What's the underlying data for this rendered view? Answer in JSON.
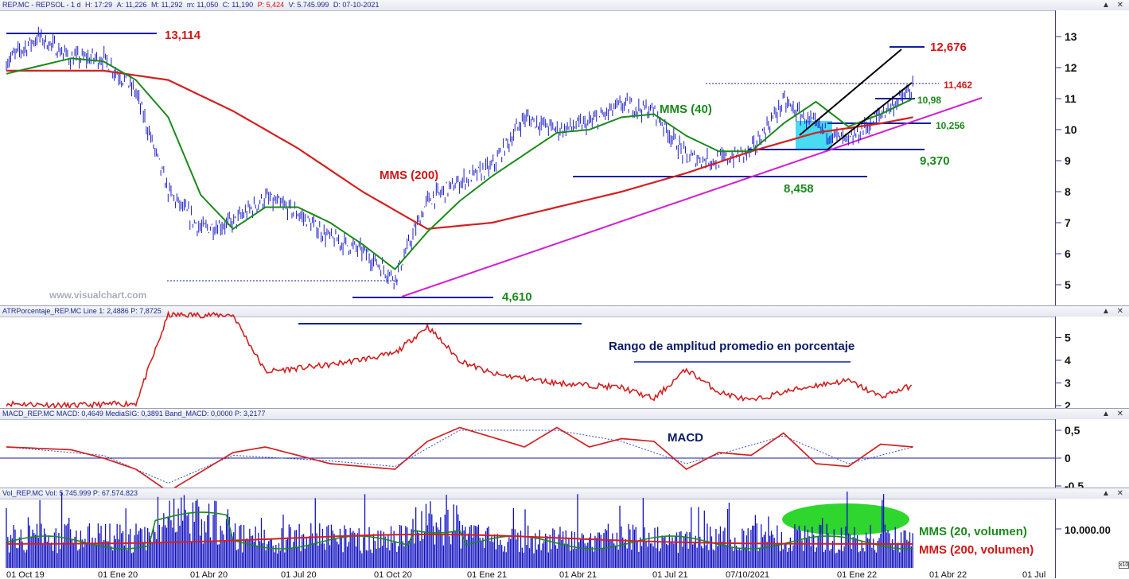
{
  "panels": {
    "price": {
      "header": [
        "REP.MC - REPSOL - 1 d",
        "H: 17:29",
        "A: 11,226",
        "M: 11,292",
        "m: 11,050",
        "C: 11,190"
      ],
      "header_red": "P: 5,424",
      "header_tail": [
        "V: 5.745.999",
        "D: 07-10-2021"
      ],
      "watermark": "www.visualchart.com",
      "yticks": [
        "13",
        "12",
        "11",
        "10",
        "9",
        "8",
        "7",
        "6",
        "5"
      ],
      "annotations": {
        "high_13114": "13,114",
        "high_12676": "12,676",
        "lvl_11462": "11,462",
        "lvl_1098": "10,98",
        "lvl_10256": "10,256",
        "lvl_9370": "9,370",
        "lvl_8458": "8,458",
        "low_4610": "4,610",
        "mms200": "MMS (200)",
        "mms40": "MMS (40)"
      }
    },
    "atr": {
      "header": "ATRPorcentaje_REP.MC Line 1: 2,4886 P: 7,8725",
      "label": "Rango de amplitud promedio en porcentaje",
      "yticks": [
        "5",
        "4",
        "3",
        "2"
      ]
    },
    "macd": {
      "header": "MACD_REP.MC MACD: 0,4649 MediaSIG: 0,3891 Band_MACD: 0,0000 P: 3,2177",
      "label": "MACD",
      "yticks": [
        "0,5",
        "0",
        "-0,5"
      ]
    },
    "volume": {
      "header": "Vol_REP.MC Vol: 5.745.999 P: 67.574.823",
      "ytick": "10.000.00",
      "mms20": "MMS (20, volumen)",
      "mms200": "MMS (200, volumen)",
      "xaxis": [
        "01 Oct 19",
        "01 Ene 20",
        "01 Abr 20",
        "01 Jul 20",
        "01 Oct 20",
        "01 Ene 21",
        "01 Abr 21",
        "01 Jul 21",
        "07/10/2021",
        "01 Ene 22",
        "01 Abr 22",
        "01 Jul"
      ],
      "corner": "x10"
    }
  },
  "colors": {
    "price_bars": "#1c1cc8",
    "sma40": "#1a8a1a",
    "sma200": "#d42020",
    "trendline": "#d020d0",
    "level_lines": "#1020a0",
    "annotation_red": "#d01818",
    "annotation_green": "#1a8a1a",
    "atr_line": "#d02020",
    "macd_line": "#d02020",
    "signal_line": "#3050d0",
    "volume_bars": "#1010c0",
    "highlight_cyan": "#27d6f0",
    "highlight_green": "#2ed62e"
  },
  "chart_data": [
    {
      "type": "line",
      "title": "REP.MC - REPSOL",
      "x_range": [
        "2019-10",
        "2022-01"
      ],
      "ylim": [
        4.5,
        13.5
      ],
      "series": [
        {
          "name": "REP.MC",
          "x": [
            "2019-10",
            "2019-11",
            "2019-12",
            "2020-01",
            "2020-02",
            "2020-03",
            "2020-04",
            "2020-05",
            "2020-06",
            "2020-07",
            "2020-08",
            "2020-09",
            "2020-10",
            "2020-11",
            "2020-12",
            "2021-01",
            "2021-02",
            "2021-03",
            "2021-04",
            "2021-05",
            "2021-06",
            "2021-07",
            "2021-08",
            "2021-09",
            "2021-10",
            "2021-11",
            "2021-12",
            "2022-01",
            "2022-02"
          ],
          "values": [
            12.2,
            13.0,
            12.3,
            12.3,
            11.2,
            8.0,
            6.8,
            7.0,
            7.8,
            7.3,
            6.5,
            6.1,
            5.2,
            7.7,
            8.3,
            8.8,
            10.4,
            10.0,
            10.2,
            10.8,
            10.6,
            9.1,
            9.0,
            9.3,
            10.9,
            10.1,
            9.6,
            10.5,
            11.3
          ]
        },
        {
          "name": "MMS (40)",
          "x": [
            "2019-10",
            "2019-12",
            "2020-01",
            "2020-02",
            "2020-03",
            "2020-04",
            "2020-05",
            "2020-06",
            "2020-07",
            "2020-08",
            "2020-09",
            "2020-10",
            "2020-11",
            "2020-12",
            "2021-01",
            "2021-02",
            "2021-03",
            "2021-04",
            "2021-05",
            "2021-06",
            "2021-07",
            "2021-08",
            "2021-09",
            "2021-10",
            "2021-11",
            "2021-12",
            "2022-01",
            "2022-02"
          ],
          "values": [
            11.8,
            12.3,
            12.2,
            11.6,
            10.4,
            7.9,
            6.8,
            7.5,
            7.5,
            7.0,
            6.3,
            5.5,
            6.7,
            7.7,
            8.5,
            9.2,
            9.9,
            10.0,
            10.4,
            10.5,
            9.8,
            9.3,
            9.3,
            10.2,
            10.9,
            10.1,
            10.5,
            11.0
          ]
        },
        {
          "name": "MMS (200)",
          "x": [
            "2019-10",
            "2020-01",
            "2020-03",
            "2020-05",
            "2020-07",
            "2020-09",
            "2020-11",
            "2021-01",
            "2021-03",
            "2021-05",
            "2021-07",
            "2021-09",
            "2021-11",
            "2022-01",
            "2022-02"
          ],
          "values": [
            11.9,
            11.9,
            11.6,
            10.6,
            9.4,
            8.0,
            6.8,
            7.0,
            7.5,
            8.0,
            8.6,
            9.3,
            9.9,
            10.2,
            10.4
          ]
        }
      ]
    },
    {
      "type": "line",
      "title": "ATRPorcentaje_REP.MC",
      "ylim": [
        2,
        6
      ],
      "series": [
        {
          "name": "Line 1",
          "x": [
            "2019-10",
            "2019-12",
            "2020-02",
            "2020-03",
            "2020-05",
            "2020-06",
            "2020-08",
            "2020-10",
            "2020-11",
            "2020-12",
            "2021-01",
            "2021-03",
            "2021-05",
            "2021-06",
            "2021-07",
            "2021-08",
            "2021-09",
            "2021-10",
            "2021-11",
            "2021-12",
            "2022-01",
            "2022-02"
          ],
          "values": [
            2.1,
            2.0,
            2.1,
            6.0,
            6.0,
            3.5,
            3.8,
            4.3,
            5.5,
            4.0,
            3.4,
            3.0,
            2.8,
            2.3,
            3.6,
            2.6,
            2.2,
            2.6,
            2.9,
            3.1,
            2.4,
            2.9
          ]
        }
      ]
    },
    {
      "type": "line",
      "title": "MACD_REP.MC",
      "ylim": [
        -0.5,
        0.7
      ],
      "series": [
        {
          "name": "MACD",
          "x": [
            "2019-10",
            "2019-12",
            "2020-01",
            "2020-02",
            "2020-03",
            "2020-05",
            "2020-06",
            "2020-08",
            "2020-10",
            "2020-11",
            "2020-12",
            "2021-02",
            "2021-03",
            "2021-04",
            "2021-05",
            "2021-06",
            "2021-07",
            "2021-08",
            "2021-09",
            "2021-10",
            "2021-11",
            "2021-12",
            "2022-01",
            "2022-02"
          ],
          "values": [
            0.2,
            0.15,
            0.0,
            -0.2,
            -0.6,
            0.1,
            0.2,
            -0.1,
            -0.2,
            0.3,
            0.55,
            0.2,
            0.55,
            0.2,
            0.35,
            0.3,
            -0.2,
            0.1,
            0.05,
            0.45,
            -0.1,
            -0.15,
            0.25,
            0.2
          ]
        },
        {
          "name": "MediaSIG",
          "x": [
            "2019-10",
            "2020-01",
            "2020-03",
            "2020-05",
            "2020-08",
            "2020-10",
            "2020-12",
            "2021-03",
            "2021-05",
            "2021-07",
            "2021-10",
            "2021-12",
            "2022-02"
          ],
          "values": [
            0.2,
            0.05,
            -0.45,
            0.05,
            -0.05,
            -0.15,
            0.5,
            0.5,
            0.3,
            -0.1,
            0.4,
            -0.1,
            0.2
          ]
        }
      ]
    },
    {
      "type": "bar",
      "title": "Vol_REP.MC",
      "series": [
        {
          "name": "Vol",
          "note": "daily volume bars"
        },
        {
          "name": "MMS (20, volumen)"
        },
        {
          "name": "MMS (200, volumen)"
        }
      ]
    }
  ]
}
